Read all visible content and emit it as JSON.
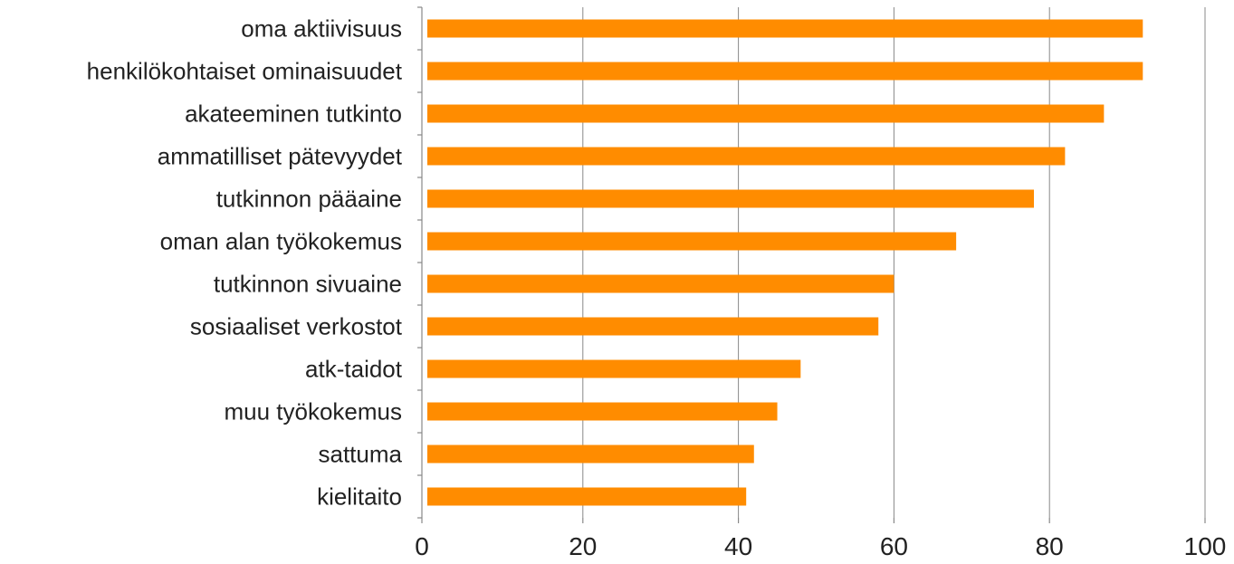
{
  "chart_data": {
    "type": "bar",
    "orientation": "horizontal",
    "categories": [
      "oma aktiivisuus",
      "henkilökohtaiset ominaisuudet",
      "akateeminen tutkinto",
      "ammatilliset pätevyydet",
      "tutkinnon pääaine",
      "oman alan työkokemus",
      "tutkinnon sivuaine",
      "sosiaaliset verkostot",
      "atk-taidot",
      "muu työkokemus",
      "sattuma",
      "kielitaito"
    ],
    "values": [
      92,
      92,
      87,
      82,
      78,
      68,
      60,
      58,
      48,
      45,
      42,
      41
    ],
    "xlim": [
      0,
      100
    ],
    "xticks": [
      0,
      20,
      40,
      60,
      80,
      100
    ],
    "tick_labels": [
      "0",
      "20",
      "40",
      "60",
      "80",
      "100"
    ],
    "grid": "vertical",
    "legend": "none",
    "bar_color": "#ff8c00",
    "title": "",
    "xlabel": "",
    "ylabel": ""
  }
}
